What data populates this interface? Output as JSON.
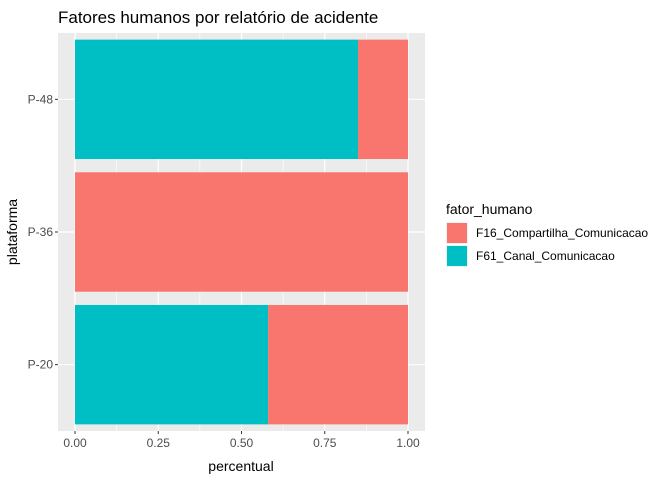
{
  "chart_data": {
    "type": "bar",
    "orientation": "horizontal",
    "stacked": true,
    "title": "Fatores humanos por relatório de acidente",
    "xlabel": "percentual",
    "ylabel": "plataforma",
    "xlim": [
      0,
      1
    ],
    "x_ticks": [
      "0.00",
      "0.25",
      "0.50",
      "0.75",
      "1.00"
    ],
    "categories": [
      "P-20",
      "P-36",
      "P-48"
    ],
    "series": [
      {
        "name": "F61_Canal_Comunicacao",
        "color": "#00BFC4",
        "values": [
          0.58,
          0.0,
          0.85
        ]
      },
      {
        "name": "F16_Compartilha_Comunicacao",
        "color": "#F8766D",
        "values": [
          0.42,
          1.0,
          0.15
        ]
      }
    ],
    "legend": {
      "title": "fator_humano",
      "position": "right",
      "entries": [
        {
          "label": "F16_Compartilha_Comunicacao",
          "color": "#F8766D"
        },
        {
          "label": "F61_Canal_Comunicacao",
          "color": "#00BFC4"
        }
      ]
    },
    "grid": true,
    "panel_background": "#EBEBEB"
  }
}
